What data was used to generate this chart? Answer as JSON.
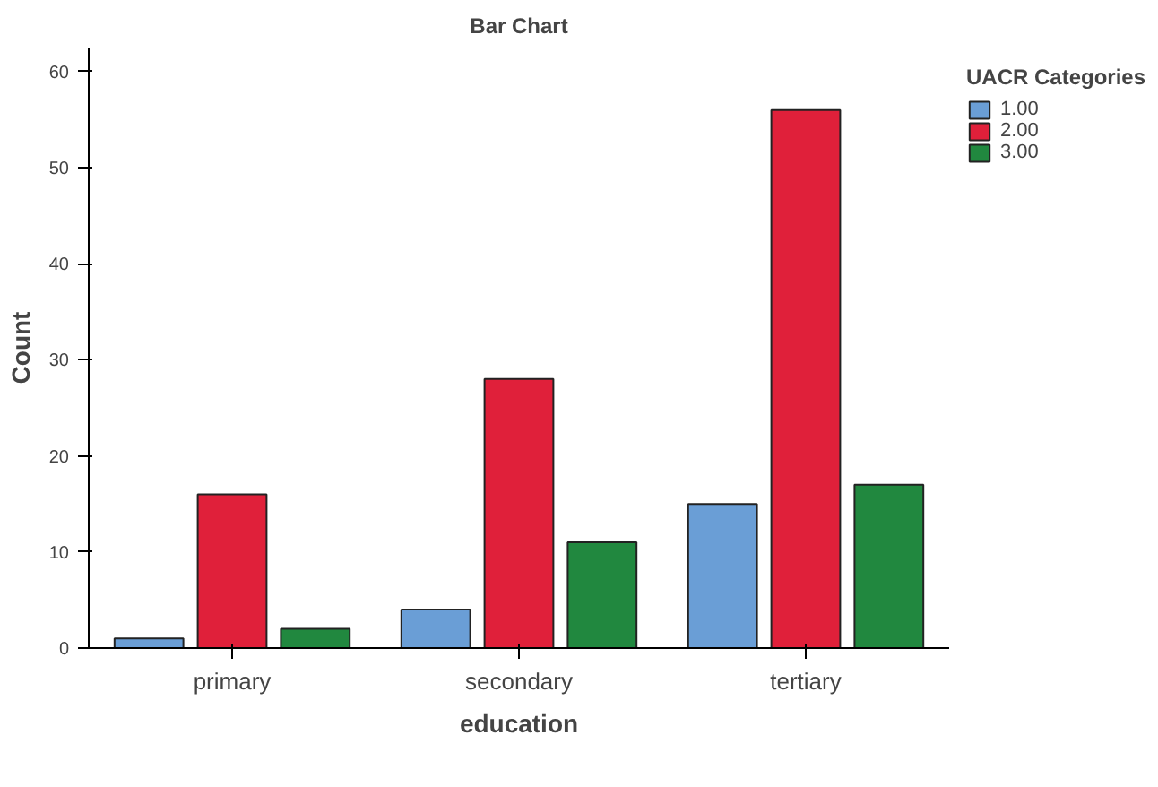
{
  "chart_data": {
    "type": "bar",
    "title": "Bar Chart",
    "xlabel": "education",
    "ylabel": "Count",
    "legend_title": "UACR Categories",
    "categories": [
      "primary",
      "secondary",
      "tertiary"
    ],
    "series": [
      {
        "name": "1.00",
        "color": "#6a9ed6",
        "values": [
          1,
          4,
          15
        ]
      },
      {
        "name": "2.00",
        "color": "#e0203a",
        "values": [
          16,
          28,
          56
        ]
      },
      {
        "name": "3.00",
        "color": "#21883f",
        "values": [
          2,
          11,
          17
        ]
      }
    ],
    "ylim": [
      0,
      62.5
    ],
    "yticks": [
      0,
      10,
      20,
      30,
      40,
      50,
      60
    ],
    "grid": false,
    "legend": "right"
  }
}
